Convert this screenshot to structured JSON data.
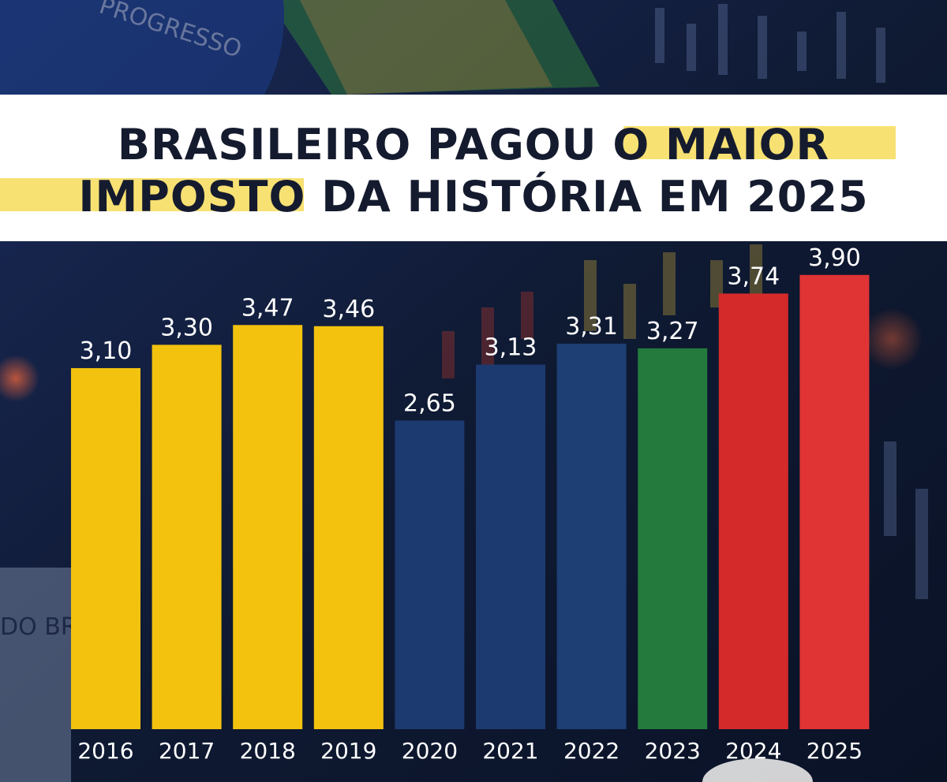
{
  "chart_data": {
    "type": "bar",
    "title_lines": [
      "BRASILEIRO PAGOU O MAIOR",
      "IMPOSTO DA HISTÓRIA EM 2025"
    ],
    "categories": [
      "2016",
      "2017",
      "2018",
      "2019",
      "2020",
      "2021",
      "2022",
      "2023",
      "2024",
      "2025"
    ],
    "values": [
      3.1,
      3.3,
      3.47,
      3.46,
      2.65,
      3.13,
      3.31,
      3.27,
      3.74,
      3.9
    ],
    "data_labels": [
      "3,10",
      "3,30",
      "3,47",
      "3,46",
      "2,65",
      "3,13",
      "3,31",
      "3,27",
      "3,74",
      "3,90"
    ],
    "bar_colors": [
      "#f2c20f",
      "#f2c20f",
      "#f2c20f",
      "#f2c20f",
      "#1d3a70",
      "#1d3a70",
      "#1d3f74",
      "#237a3c",
      "#d42a2a",
      "#e03434"
    ],
    "ylim": [
      0,
      4.23
    ],
    "grid": false,
    "legend": "none"
  },
  "background": {
    "flag_text_top": "PROGRESSO",
    "flag_text_left": "DO BRA"
  }
}
